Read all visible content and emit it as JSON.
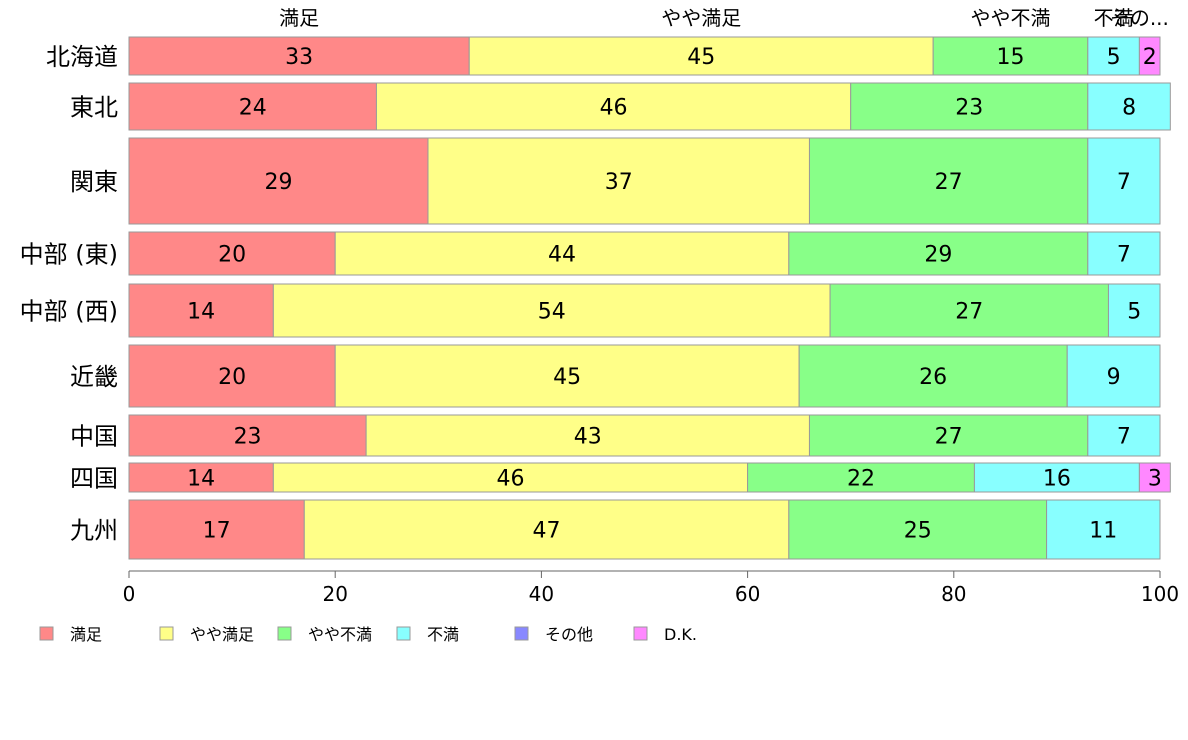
{
  "chart_data": {
    "type": "bar",
    "orientation": "horizontal",
    "stacked": true,
    "categories": [
      "北海道",
      "東北",
      "関東",
      "中部 (東)",
      "中部 (西)",
      "近畿",
      "中国",
      "四国",
      "九州"
    ],
    "series": [
      {
        "name": "満足",
        "color": "#ff8888",
        "values": [
          33,
          24,
          29,
          20,
          14,
          20,
          23,
          14,
          17
        ]
      },
      {
        "name": "やや満足",
        "color": "#ffff88",
        "values": [
          45,
          46,
          37,
          44,
          54,
          45,
          43,
          46,
          47
        ]
      },
      {
        "name": "やや不満",
        "color": "#88ff88",
        "values": [
          15,
          23,
          27,
          29,
          27,
          26,
          27,
          22,
          25
        ]
      },
      {
        "name": "不満",
        "color": "#88ffff",
        "values": [
          5,
          8,
          7,
          7,
          5,
          9,
          7,
          16,
          11
        ]
      },
      {
        "name": "その他",
        "color": "#8888ff",
        "values": [
          0,
          0,
          0,
          0,
          0,
          0,
          0,
          0,
          0
        ]
      },
      {
        "name": "D.K.",
        "color": "#ff88ff",
        "values": [
          2,
          0,
          0,
          0,
          0,
          0,
          0,
          3,
          0
        ]
      }
    ],
    "top_labels": [
      "満足",
      "やや満足",
      "やや不満",
      "不満",
      "その..."
    ],
    "xlim": [
      0,
      100
    ],
    "xticks": [
      "0",
      "20",
      "40",
      "60",
      "80",
      "100"
    ],
    "legend_position": "bottom",
    "grid": false
  }
}
